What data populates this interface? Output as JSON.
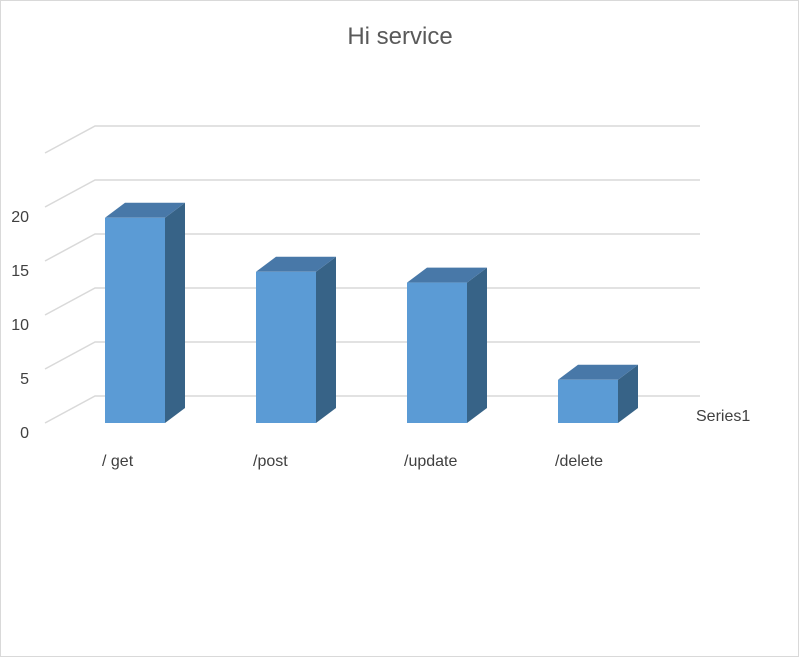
{
  "chart_data": {
    "type": "bar",
    "title": "Hi service",
    "categories": [
      "/ get",
      "/post",
      "/update",
      "/delete"
    ],
    "series": [
      {
        "name": "Series1",
        "values": [
          19,
          14,
          13,
          4
        ]
      }
    ],
    "yticks": [
      "0",
      "5",
      "10",
      "15",
      "20"
    ],
    "ylim": [
      0,
      25
    ],
    "grid": true,
    "style": "3d-column",
    "colors": {
      "front": "#5b9bd5",
      "side": "#376387",
      "top": "#4878a8",
      "grid": "#d9d9d9",
      "text": "#404040",
      "title": "#595959"
    }
  }
}
